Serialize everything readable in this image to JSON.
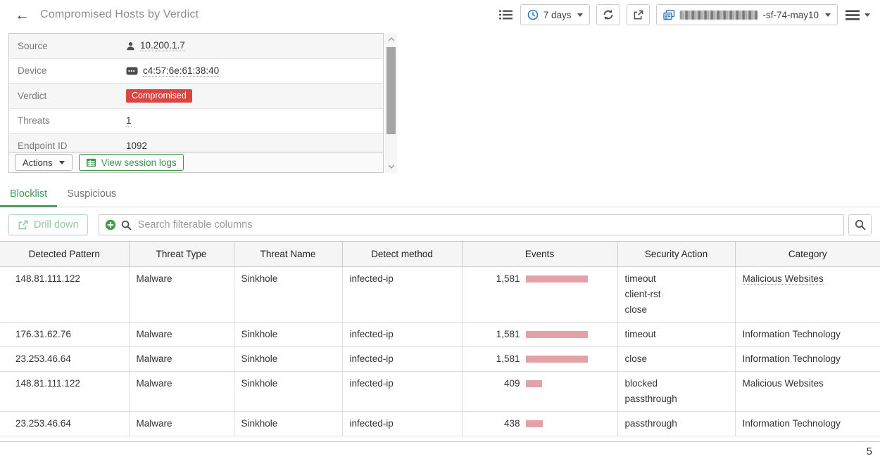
{
  "app": {
    "title": "Compromised Hosts by Verdict",
    "time_range_label": "7 days",
    "device_suffix": "-sf-74-may10",
    "page_number": "5"
  },
  "details": {
    "rows": [
      {
        "label": "Source",
        "value": "10.200.1.7"
      },
      {
        "label": "Device",
        "value": "c4:57:6e:61:38:40"
      },
      {
        "label": "Verdict",
        "value": "Compromised"
      },
      {
        "label": "Threats",
        "value": "1"
      },
      {
        "label": "Endpoint ID",
        "value": "1092"
      }
    ],
    "actions_label": "Actions",
    "view_session_logs_label": "View session logs"
  },
  "tabs": {
    "blocklist": "Blocklist",
    "suspicious": "Suspicious"
  },
  "filter": {
    "drill_down_label": "Drill down",
    "search_placeholder": "Search filterable columns"
  },
  "table": {
    "columns": [
      "Detected Pattern",
      "Threat Type",
      "Threat Name",
      "Detect method",
      "Events",
      "Security Action",
      "Category"
    ],
    "max_events": 1581,
    "rows": [
      {
        "detected_pattern": "148.81.111.122",
        "threat_type": "Malware",
        "threat_name": "Sinkhole",
        "detect_method": "infected-ip",
        "events_display": "1,581",
        "events": 1581,
        "security_action": [
          "timeout",
          "client-rst",
          "close"
        ],
        "category": "Malicious Websites",
        "category_dotted": true
      },
      {
        "detected_pattern": "176.31.62.76",
        "threat_type": "Malware",
        "threat_name": "Sinkhole",
        "detect_method": "infected-ip",
        "events_display": "1,581",
        "events": 1581,
        "security_action": [
          "timeout"
        ],
        "category": "Information Technology",
        "category_dotted": false
      },
      {
        "detected_pattern": "23.253.46.64",
        "threat_type": "Malware",
        "threat_name": "Sinkhole",
        "detect_method": "infected-ip",
        "events_display": "1,581",
        "events": 1581,
        "security_action": [
          "close"
        ],
        "category": "Information Technology",
        "category_dotted": false
      },
      {
        "detected_pattern": "148.81.111.122",
        "threat_type": "Malware",
        "threat_name": "Sinkhole",
        "detect_method": "infected-ip",
        "events_display": "409",
        "events": 409,
        "security_action": [
          "blocked",
          "passthrough"
        ],
        "category": "Malicious Websites",
        "category_dotted": false
      },
      {
        "detected_pattern": "23.253.46.64",
        "threat_type": "Malware",
        "threat_name": "Sinkhole",
        "detect_method": "infected-ip",
        "events_display": "438",
        "events": 438,
        "security_action": [
          "passthrough"
        ],
        "category": "Information Technology",
        "category_dotted": false
      }
    ]
  },
  "colors": {
    "accent_green": "#3e9551",
    "danger_red": "#d9453f",
    "events_bar_pink": "#e2a2a6",
    "device_icon_blue": "#2e75b6",
    "clock_icon_blue": "#2e79b9"
  }
}
